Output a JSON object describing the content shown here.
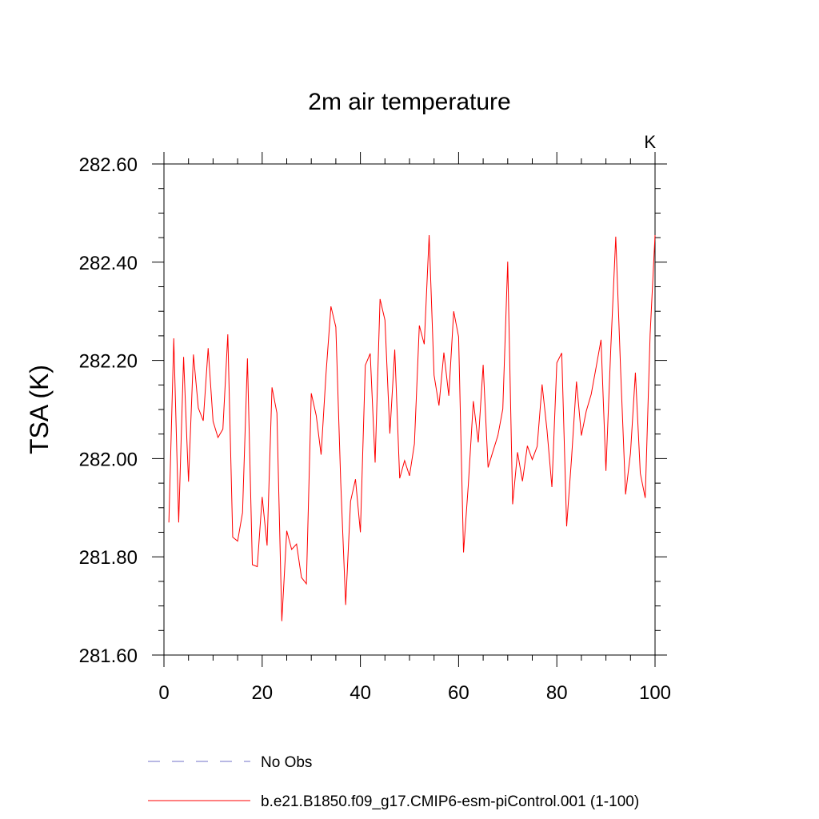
{
  "chart_data": {
    "type": "line",
    "title": "2m air temperature",
    "units_label": "K",
    "xlabel": "",
    "ylabel": "TSA  (K)",
    "xlim": [
      0,
      100
    ],
    "ylim": [
      281.6,
      282.6
    ],
    "x_ticks": [
      0,
      20,
      40,
      60,
      80,
      100
    ],
    "x_tick_labels": [
      "0",
      "20",
      "40",
      "60",
      "80",
      "100"
    ],
    "y_ticks": [
      281.6,
      281.8,
      282.0,
      282.2,
      282.4,
      282.6
    ],
    "y_tick_labels": [
      "281.60",
      "281.80",
      "282.00",
      "282.20",
      "282.40",
      "282.60"
    ],
    "grid": false,
    "legend_position": "bottom",
    "series": [
      {
        "name": "No Obs",
        "color": "#7070c8",
        "style": "dashed",
        "x": [],
        "values": []
      },
      {
        "name": "b.e21.B1850.f09_g17.CMIP6-esm-piControl.001 (1-100)",
        "color": "#ff0000",
        "style": "solid",
        "x": [
          1,
          2,
          3,
          4,
          5,
          6,
          7,
          8,
          9,
          10,
          11,
          12,
          13,
          14,
          15,
          16,
          17,
          18,
          19,
          20,
          21,
          22,
          23,
          24,
          25,
          26,
          27,
          28,
          29,
          30,
          31,
          32,
          33,
          34,
          35,
          36,
          37,
          38,
          39,
          40,
          41,
          42,
          43,
          44,
          45,
          46,
          47,
          48,
          49,
          50,
          51,
          52,
          53,
          54,
          55,
          56,
          57,
          58,
          59,
          60,
          61,
          62,
          63,
          64,
          65,
          66,
          67,
          68,
          69,
          70,
          71,
          72,
          73,
          74,
          75,
          76,
          77,
          78,
          79,
          80,
          81,
          82,
          83,
          84,
          85,
          86,
          87,
          88,
          89,
          90,
          91,
          92,
          93,
          94,
          95,
          96,
          97,
          98,
          99,
          100
        ],
        "values": [
          281.87,
          282.245,
          281.87,
          282.207,
          281.953,
          282.212,
          282.103,
          282.077,
          282.225,
          282.076,
          282.043,
          282.06,
          282.253,
          281.84,
          281.832,
          281.89,
          282.204,
          281.784,
          281.78,
          281.922,
          281.823,
          282.145,
          282.093,
          281.669,
          281.853,
          281.815,
          281.826,
          281.758,
          281.745,
          282.133,
          282.088,
          282.008,
          282.173,
          282.31,
          282.268,
          281.951,
          281.702,
          281.913,
          281.958,
          281.85,
          282.19,
          282.214,
          281.992,
          282.325,
          282.282,
          282.051,
          282.222,
          281.96,
          281.996,
          281.965,
          282.03,
          282.271,
          282.233,
          282.455,
          282.17,
          282.108,
          282.216,
          282.128,
          282.3,
          282.248,
          281.809,
          281.95,
          282.117,
          282.033,
          282.191,
          281.982,
          282.015,
          282.047,
          282.101,
          282.401,
          281.907,
          282.013,
          281.954,
          282.026,
          281.998,
          282.025,
          282.151,
          282.058,
          281.942,
          282.195,
          282.215,
          281.862,
          282.001,
          282.157,
          282.047,
          282.097,
          282.131,
          282.186,
          282.242,
          281.975,
          282.227,
          282.452,
          282.178,
          281.927,
          282.011,
          282.175,
          281.97,
          281.92,
          282.253,
          282.455
        ]
      }
    ]
  }
}
